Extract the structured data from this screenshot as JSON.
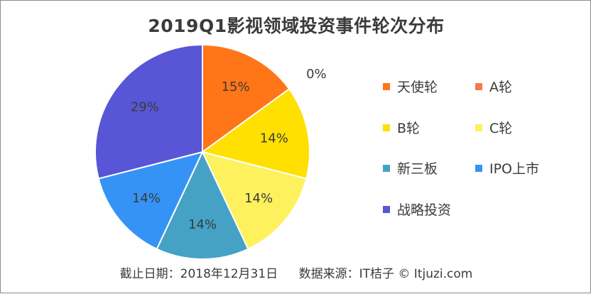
{
  "chart_data": {
    "type": "pie",
    "title": "2019Q1影视领域投资事件轮次分布",
    "slices": [
      {
        "name": "天使轮",
        "value": 15,
        "label": "15%",
        "color": "#FF7518"
      },
      {
        "name": "A轮",
        "value": 0,
        "label": "0%",
        "color": "#F47A4E"
      },
      {
        "name": "B轮",
        "value": 14,
        "label": "14%",
        "color": "#FFE000"
      },
      {
        "name": "C轮",
        "value": 14,
        "label": "14%",
        "color": "#FDF15E"
      },
      {
        "name": "新三板",
        "value": 14,
        "label": "14%",
        "color": "#45A2C4"
      },
      {
        "name": "IPO上市",
        "value": 14,
        "label": "14%",
        "color": "#3693F6"
      },
      {
        "name": "战略投资",
        "value": 29,
        "label": "29%",
        "color": "#5855D6"
      }
    ],
    "legend_position": "right"
  },
  "footer": {
    "date_text": "截止日期：2018年12月31日",
    "source_text": "数据来源：IT桔子 © Itjuzi.com"
  }
}
